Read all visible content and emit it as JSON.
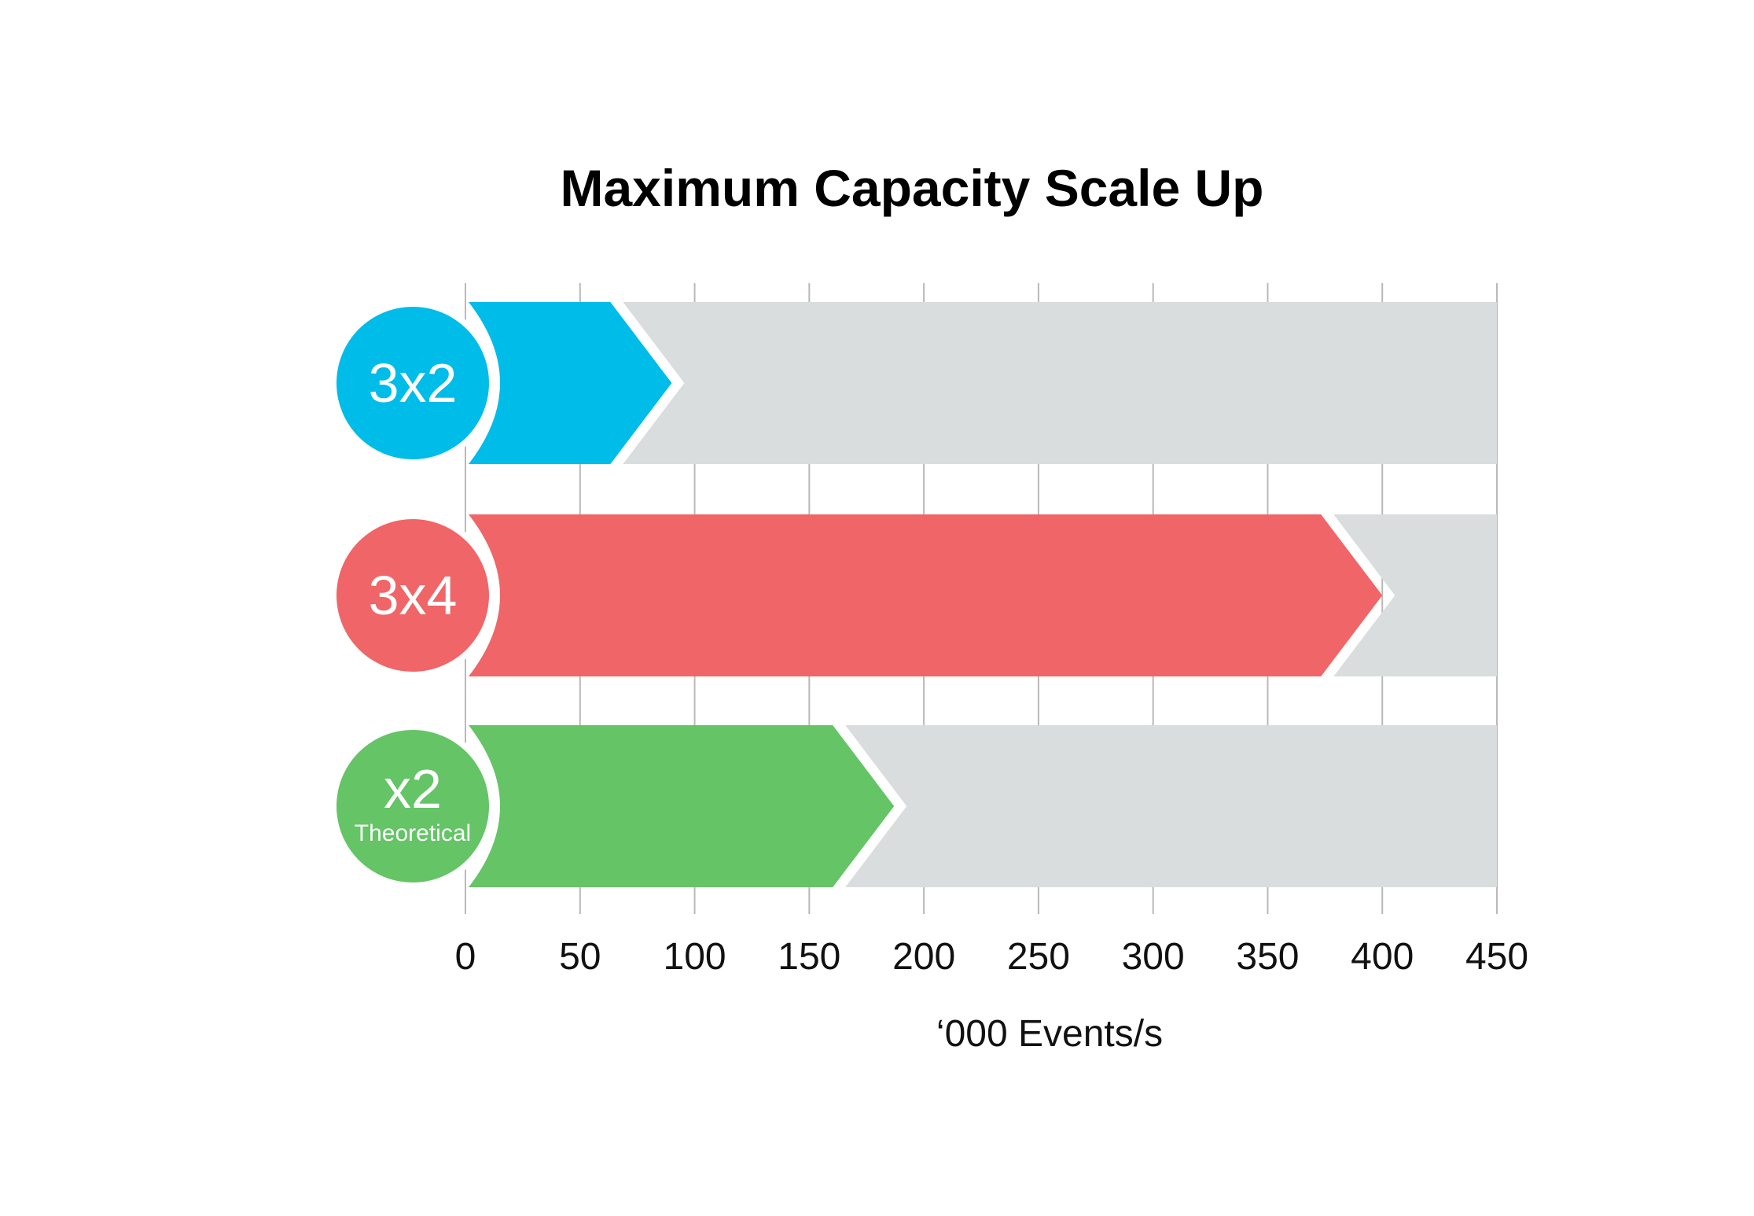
{
  "chart_data": {
    "type": "bar",
    "orientation": "horizontal",
    "title": "Maximum Capacity Scale Up",
    "xlabel": "‘000 Events/s",
    "ylabel": "",
    "xlim": [
      0,
      450
    ],
    "x_ticks": [
      "0",
      "50",
      "100",
      "150",
      "200",
      "250",
      "300",
      "350",
      "400",
      "450"
    ],
    "grid": true,
    "categories": [
      {
        "label": "3x2",
        "sublabel": "",
        "value": 90,
        "color": "#00bce9"
      },
      {
        "label": "3x4",
        "sublabel": "",
        "value": 400,
        "color": "#f06567"
      },
      {
        "label": "x2",
        "sublabel": "Theoretical",
        "value": 187,
        "color": "#64c466"
      }
    ],
    "track_color": "#d9dddd",
    "grid_color": "#b9b9b9"
  }
}
